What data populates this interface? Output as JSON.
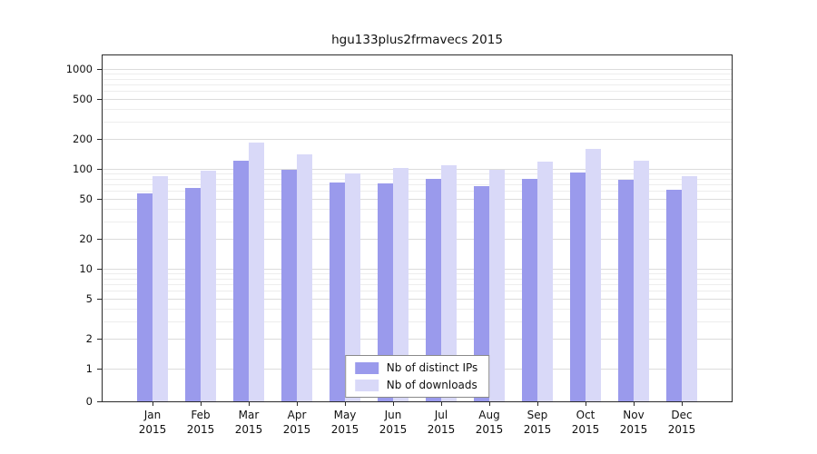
{
  "chart_data": {
    "type": "bar",
    "title": "hgu133plus2frmavecs 2015",
    "scale": "log",
    "categories": [
      "Jan",
      "Feb",
      "Mar",
      "Apr",
      "May",
      "Jun",
      "Jul",
      "Aug",
      "Sep",
      "Oct",
      "Nov",
      "Dec"
    ],
    "year_label": "2015",
    "series": [
      {
        "name": "Nb of distinct IPs",
        "color": "#9a9aec",
        "values": [
          57,
          65,
          120,
          97,
          73,
          71,
          80,
          67,
          80,
          92,
          78,
          62
        ]
      },
      {
        "name": "Nb of downloads",
        "color": "#d9d9f8",
        "values": [
          85,
          95,
          185,
          140,
          90,
          103,
          108,
          97,
          118,
          160,
          122,
          85
        ]
      }
    ],
    "yticks": [
      0,
      1,
      2,
      5,
      10,
      20,
      50,
      100,
      200,
      500,
      1000
    ],
    "ylim": [
      0,
      1400
    ],
    "legend_position": "bottom-center",
    "grid": "horizontal"
  }
}
